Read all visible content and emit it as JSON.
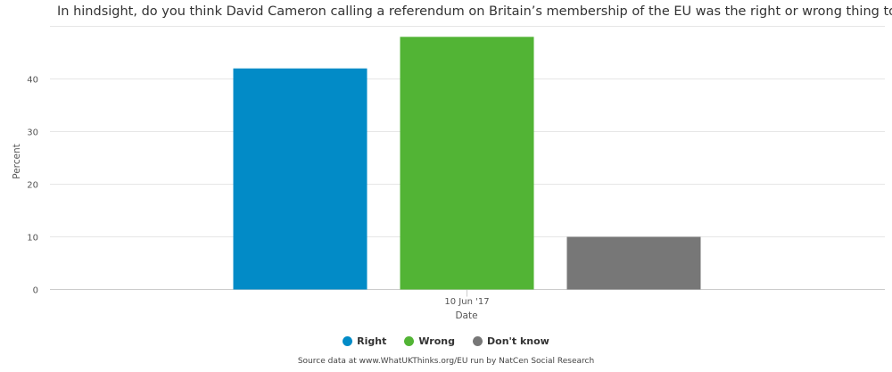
{
  "chart_data": {
    "type": "bar",
    "title": "In hindsight, do you think David Cameron calling a referendum on Britain’s membership of the EU was the right or wrong thing to do?",
    "xlabel": "Date",
    "ylabel": "Percent",
    "categories": [
      "10 Jun '17"
    ],
    "series": [
      {
        "name": "Right",
        "values": [
          42
        ],
        "color": "#028BC7"
      },
      {
        "name": "Wrong",
        "values": [
          48
        ],
        "color": "#52B435"
      },
      {
        "name": "Don't know",
        "values": [
          10
        ],
        "color": "#777777"
      }
    ],
    "ylim": [
      0,
      50
    ],
    "yticks": [
      0,
      10,
      20,
      30,
      40
    ],
    "grid": true,
    "legend_position": "bottom-center"
  },
  "source": "Source data at www.WhatUKThinks.org/EU run by NatCen Social Research"
}
